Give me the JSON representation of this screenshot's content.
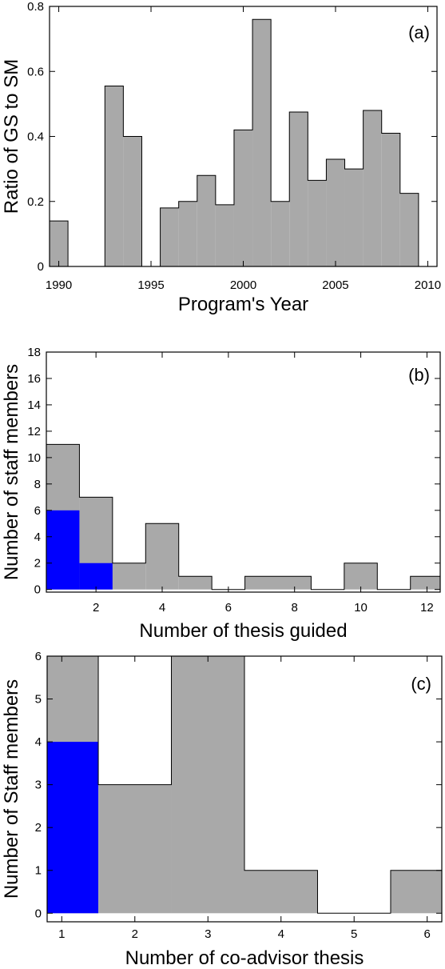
{
  "chart_data": [
    {
      "type": "bar",
      "panel_label": "(a)",
      "xlabel": "Program's Year",
      "ylabel": "Ratio of GS to SM",
      "xlim": [
        1989.5,
        2010.5
      ],
      "ylim": [
        0,
        0.8
      ],
      "xticks": [
        1990,
        1995,
        2000,
        2005,
        2010
      ],
      "xtick_labels": [
        "1990",
        "1995",
        "2000",
        "2005",
        "2010"
      ],
      "yticks": [
        0,
        0.2,
        0.4,
        0.6,
        0.8
      ],
      "ytick_labels": [
        "0",
        "0.2",
        "0.4",
        "0.6",
        "0.8"
      ],
      "bin_width": 1,
      "series": [
        {
          "color": "#a9a9a9",
          "x": [
            1990,
            1991,
            1992,
            1993,
            1994,
            1995,
            1996,
            1997,
            1998,
            1999,
            2000,
            2001,
            2002,
            2003,
            2004,
            2005,
            2006,
            2007,
            2008,
            2009,
            2010
          ],
          "values": [
            0.14,
            0,
            0,
            0.555,
            0.4,
            0,
            0.18,
            0.2,
            0.28,
            0.19,
            0.42,
            0.76,
            0.2,
            0.475,
            0.265,
            0.33,
            0.3,
            0.48,
            0.41,
            0.225,
            0
          ]
        }
      ]
    },
    {
      "type": "bar",
      "panel_label": "(b)",
      "xlabel": "Number of thesis guided",
      "ylabel": "Number of staff members",
      "xlim": [
        0.5,
        12.4
      ],
      "ylim": [
        -0.2,
        18
      ],
      "xticks": [
        2,
        4,
        6,
        8,
        10,
        12
      ],
      "xtick_labels": [
        "2",
        "4",
        "6",
        "8",
        "10",
        "12"
      ],
      "yticks": [
        0,
        2,
        4,
        6,
        8,
        10,
        12,
        14,
        16,
        18
      ],
      "ytick_labels": [
        "0",
        "2",
        "4",
        "6",
        "8",
        "10",
        "12",
        "14",
        "16",
        "18"
      ],
      "bin_width": 1,
      "series": [
        {
          "color": "#a9a9a9",
          "x": [
            1,
            2,
            3,
            4,
            5,
            6,
            7,
            8,
            9,
            10,
            11,
            12
          ],
          "values": [
            11,
            7,
            2,
            5,
            1,
            0,
            1,
            1,
            0,
            2,
            0,
            1
          ]
        },
        {
          "color": "#0000ff",
          "x": [
            1,
            2
          ],
          "values": [
            6,
            2
          ]
        }
      ]
    },
    {
      "type": "bar",
      "panel_label": "(c)",
      "xlabel": "Number of co-advisor thesis",
      "ylabel": "Number of Staff members",
      "xlim": [
        0.8,
        6.2
      ],
      "ylim": [
        -0.2,
        6
      ],
      "xticks": [
        1,
        2,
        3,
        4,
        5,
        6
      ],
      "xtick_labels": [
        "1",
        "2",
        "3",
        "4",
        "5",
        "6"
      ],
      "yticks": [
        0,
        1,
        2,
        3,
        4,
        5,
        6
      ],
      "ytick_labels": [
        "0",
        "1",
        "2",
        "3",
        "4",
        "5",
        "6"
      ],
      "bin_width": 1,
      "series": [
        {
          "color": "#a9a9a9",
          "x": [
            1,
            2,
            3,
            4,
            5,
            6
          ],
          "values": [
            6,
            3,
            6,
            1,
            0,
            1
          ]
        },
        {
          "color": "#0000ff",
          "x": [
            1
          ],
          "values": [
            4
          ]
        }
      ]
    }
  ]
}
